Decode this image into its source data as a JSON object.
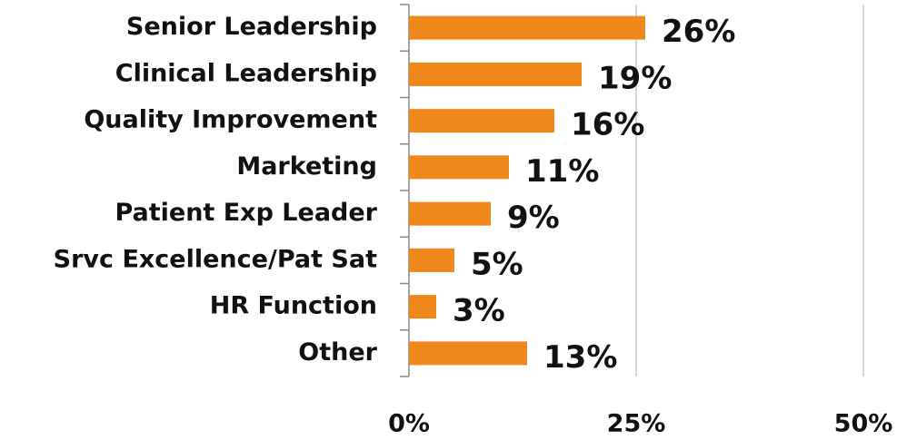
{
  "chart_data": {
    "type": "bar",
    "orientation": "horizontal",
    "categories": [
      "Senior Leadership",
      "Clinical Leadership",
      "Quality Improvement",
      "Marketing",
      "Patient Exp Leader",
      "Srvc Excellence/Pat Sat",
      "HR Function",
      "Other"
    ],
    "values": [
      26,
      19,
      16,
      11,
      9,
      5,
      3,
      13
    ],
    "value_labels": [
      "26%",
      "19%",
      "16%",
      "11%",
      "9%",
      "5%",
      "3%",
      "13%"
    ],
    "color": "#f0871a",
    "xlim": [
      0,
      50
    ],
    "xticks": [
      {
        "value": 0,
        "label": "0%"
      },
      {
        "value": 25,
        "label": "25%"
      },
      {
        "value": 50,
        "label": "50%"
      }
    ],
    "grid": true
  }
}
